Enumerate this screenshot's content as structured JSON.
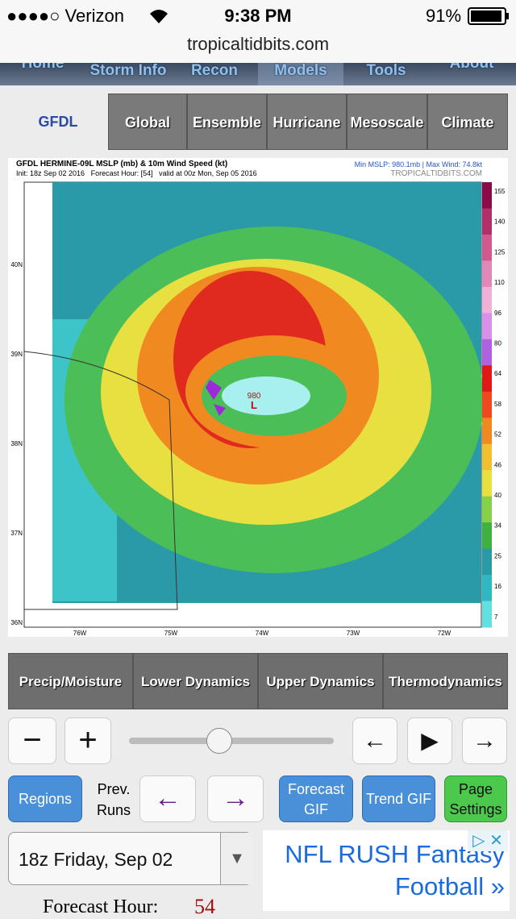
{
  "status_bar": {
    "carrier": "●●●●○ Verizon",
    "time": "9:38 PM",
    "battery": "91%"
  },
  "address_bar": {
    "url": "tropicaltidbits.com"
  },
  "nav": {
    "items": [
      "Home",
      "Storm Info",
      "Recon",
      "Models",
      "Tools",
      "About"
    ]
  },
  "model_tabs": {
    "items": [
      "GFDL",
      "Global",
      "Ensemble",
      "Hurricane",
      "Mesoscale",
      "Climate"
    ]
  },
  "map": {
    "title": "GFDL HERMINE-09L MSLP (mb) & 10m Wind Speed (kt)",
    "subtitle": "Init: 18z Sep 02 2016   Forecast Hour: [54]   valid at 00z Mon, Sep 05 2016",
    "info": "Min MSLP: 980.1mb | Max Wind: 74.8kt",
    "credit": "TROPICALTIDBITS.COM",
    "latitudes": [
      "40N",
      "39N",
      "38N",
      "37N",
      "36N"
    ],
    "longitudes": [
      "76W",
      "75W",
      "74W",
      "73W",
      "72W"
    ],
    "colorbar_labels": [
      155,
      140,
      125,
      110,
      96,
      80,
      64,
      58,
      52,
      46,
      40,
      34,
      25,
      16,
      7
    ],
    "low_pressure": "980",
    "low_symbol": "L"
  },
  "categories": {
    "items": [
      "Precip/Moisture",
      "Lower Dynamics",
      "Upper Dynamics",
      "Thermodynamics"
    ]
  },
  "controls": {
    "zoom_out": "−",
    "zoom_in": "+",
    "prev": "←",
    "play": "▶",
    "next": "→"
  },
  "actions": {
    "regions": "Regions",
    "prev_runs": "Prev. Runs",
    "prev_run": "←",
    "next_run": "→",
    "forecast_gif": "Forecast GIF",
    "trend_gif": "Trend GIF",
    "page_settings": "Page Settings"
  },
  "run_select": {
    "value": "18z Friday, Sep 02"
  },
  "ad": {
    "text": "NFL RUSH Fantasy Football »"
  },
  "forecast_hour": {
    "label": "Forecast Hour:",
    "value": 54
  }
}
